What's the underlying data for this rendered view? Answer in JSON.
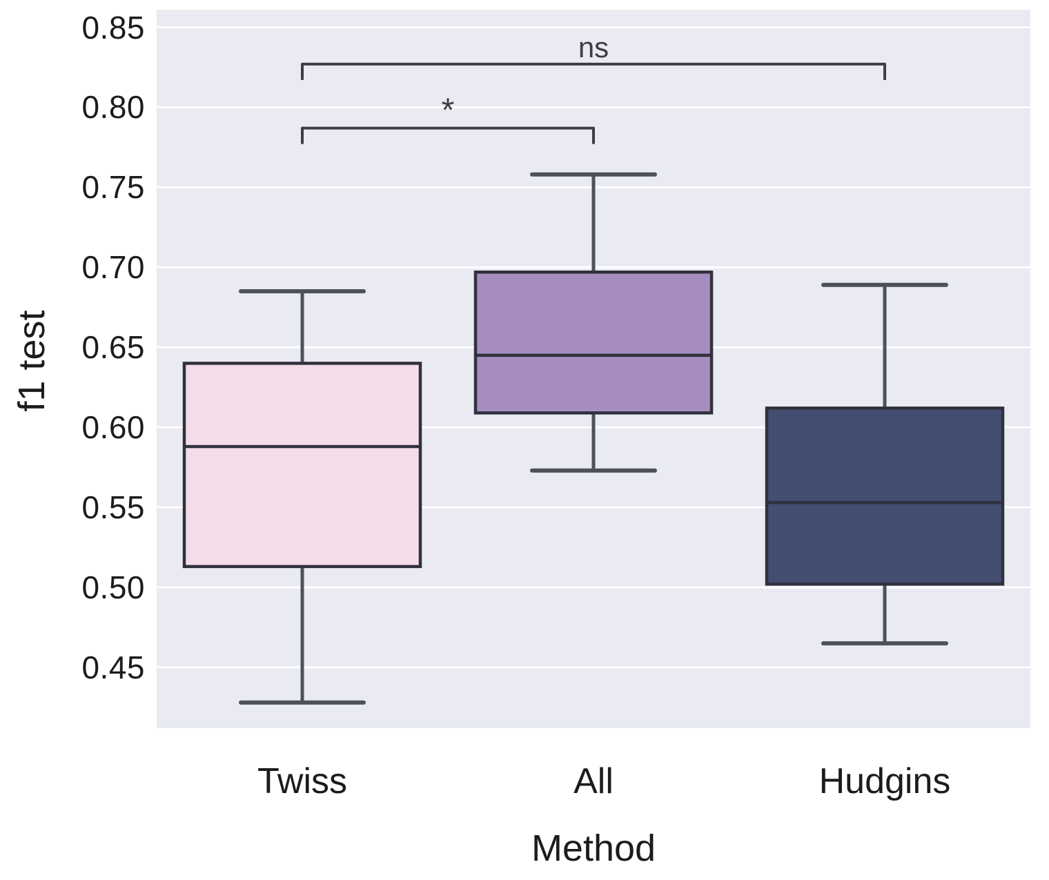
{
  "chart_data": {
    "type": "box",
    "title": "",
    "xlabel": "Method",
    "ylabel": "f1 test",
    "categories": [
      "Twiss",
      "All",
      "Hudgins"
    ],
    "series": [
      {
        "name": "Twiss",
        "whisker_low": 0.428,
        "q1": 0.513,
        "median": 0.588,
        "q3": 0.64,
        "whisker_high": 0.685,
        "fill_color": "#f4dde9"
      },
      {
        "name": "All",
        "whisker_low": 0.573,
        "q1": 0.609,
        "median": 0.645,
        "q3": 0.697,
        "whisker_high": 0.758,
        "fill_color": "#a58dc0"
      },
      {
        "name": "Hudgins",
        "whisker_low": 0.465,
        "q1": 0.502,
        "median": 0.553,
        "q3": 0.612,
        "whisker_high": 0.689,
        "fill_color": "#434e71"
      }
    ],
    "annotations": [
      {
        "label": "ns",
        "from": "Twiss",
        "to": "Hudgins",
        "y": 0.827
      },
      {
        "label": "*",
        "from": "Twiss",
        "to": "All",
        "y": 0.787
      }
    ],
    "yticks": [
      0.85,
      0.8,
      0.75,
      0.7,
      0.65,
      0.6,
      0.55,
      0.5,
      0.45
    ],
    "ytick_labels": [
      "0.85",
      "0.80",
      "0.75",
      "0.70",
      "0.65",
      "0.60",
      "0.55",
      "0.50",
      "0.45"
    ],
    "ylim": [
      0.412,
      0.861
    ],
    "grid": true,
    "legend_position": "none",
    "colors": {
      "figure_background": "#ffffff",
      "plot_background": "#e9eaf2",
      "gridline": "#ffffff",
      "box_edge": "#30313c",
      "median_line": "#30313c",
      "whisker": "#4d515a",
      "bracket": "#3d3d42",
      "text": "#1c1c1c"
    }
  }
}
